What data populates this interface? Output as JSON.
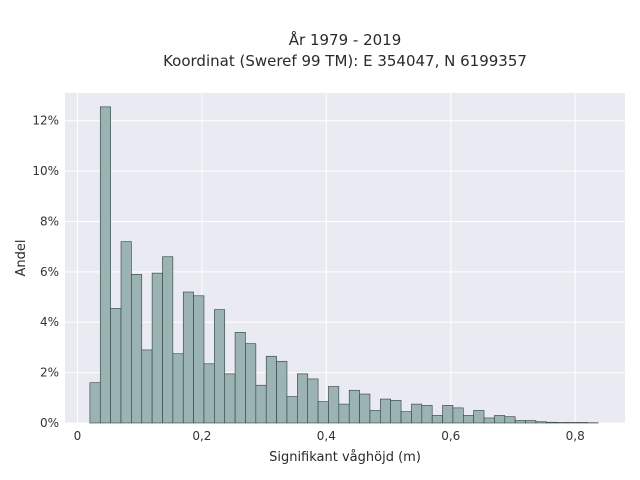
{
  "chart_data": {
    "type": "bar",
    "title_lines": [
      "År 1979 - 2019",
      "Koordinat (Sweref 99 TM): E 354047, N 6199357"
    ],
    "xlabel": "Signifikant våghöjd (m)",
    "ylabel": "Andel",
    "xlim": [
      -0.02,
      0.88
    ],
    "ylim": [
      0,
      13.1
    ],
    "x_ticks": [
      0,
      0.2,
      0.4,
      0.6,
      0.8
    ],
    "x_tick_labels": [
      "0",
      "0,2",
      "0,4",
      "0,6",
      "0,8"
    ],
    "y_ticks": [
      0,
      2,
      4,
      6,
      8,
      10,
      12
    ],
    "y_tick_labels": [
      "0%",
      "2%",
      "4%",
      "6%",
      "8%",
      "10%",
      "12%"
    ],
    "bin_start": 0.02,
    "bin_width": 0.01667,
    "values": [
      1.6,
      12.55,
      4.55,
      7.2,
      5.9,
      2.9,
      5.95,
      6.6,
      2.75,
      5.2,
      5.05,
      2.35,
      4.5,
      1.95,
      3.6,
      3.15,
      1.5,
      2.65,
      2.45,
      1.05,
      1.95,
      1.75,
      0.85,
      1.45,
      0.75,
      1.3,
      1.15,
      0.5,
      0.95,
      0.9,
      0.45,
      0.75,
      0.7,
      0.3,
      0.7,
      0.6,
      0.3,
      0.5,
      0.2,
      0.3,
      0.25,
      0.1,
      0.1,
      0.05,
      0.03,
      0.02,
      0.02,
      0.02,
      0.01
    ],
    "grid": true,
    "bar_color": "#9cb3b3",
    "bar_edge_color": "#2f3f3f",
    "background_color": "#eaeaf2"
  }
}
